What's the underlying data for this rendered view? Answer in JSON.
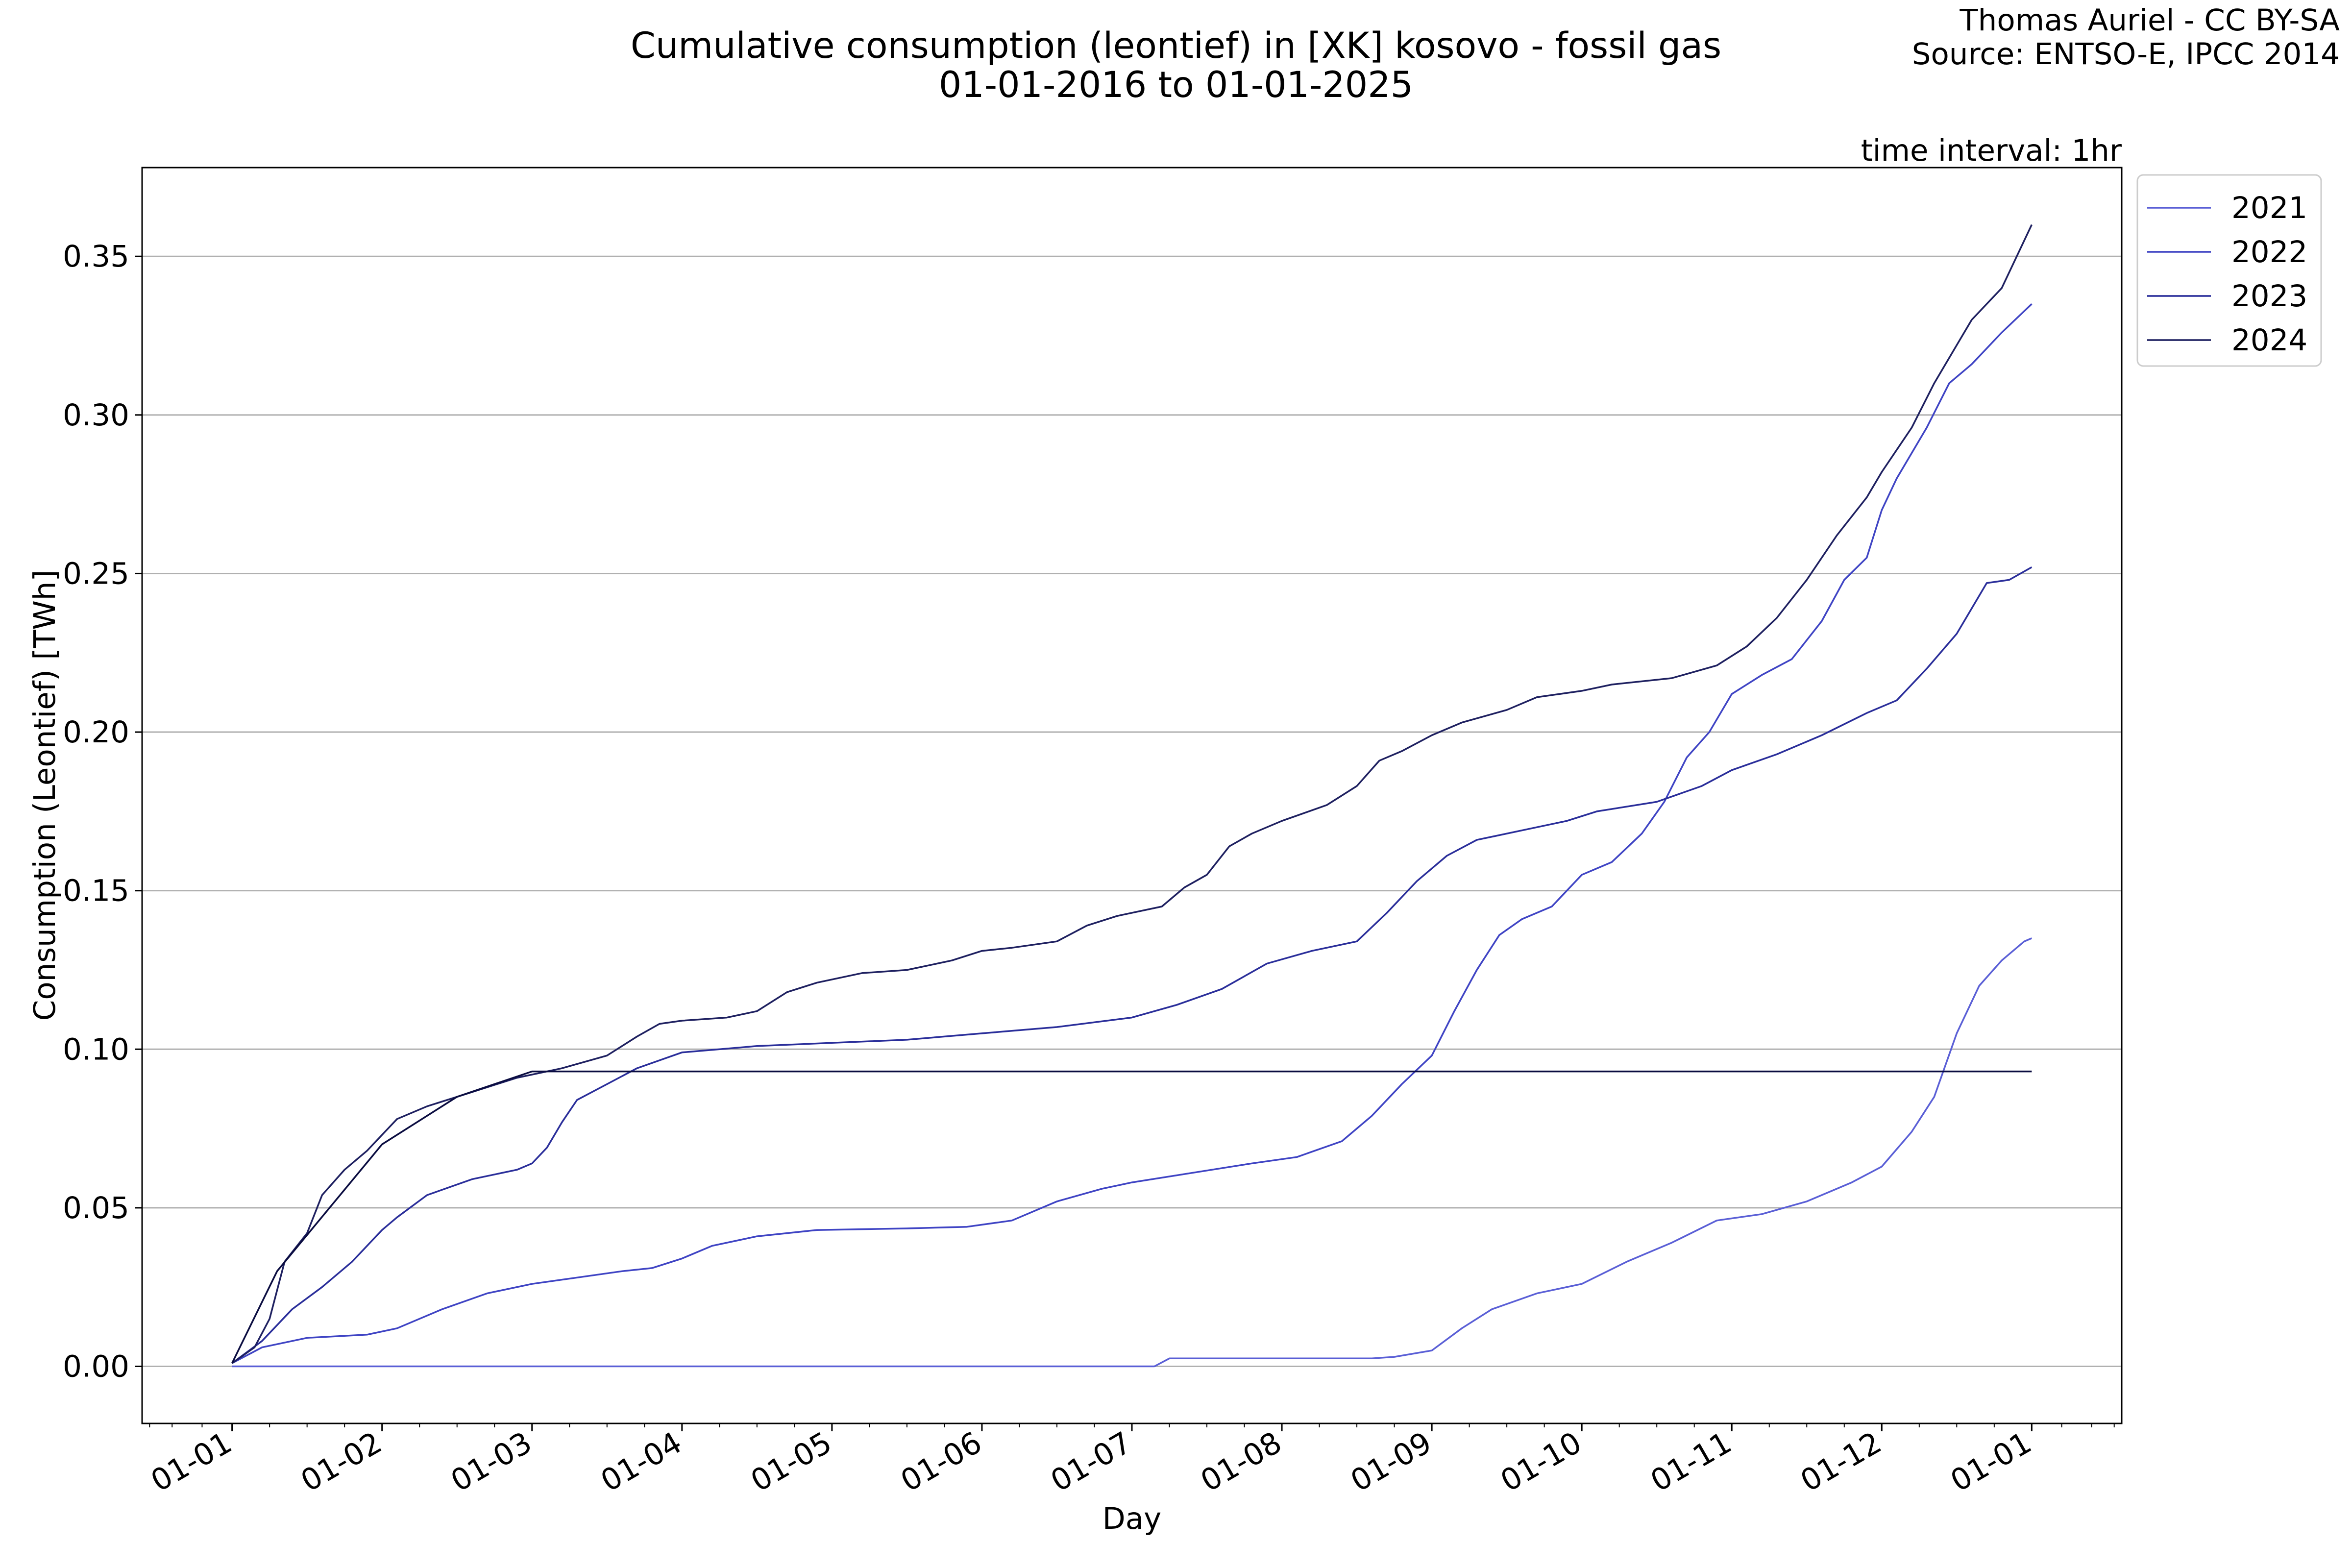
{
  "header": {
    "title_line1": "Cumulative consumption (leontief) in [XK] kosovo - fossil gas",
    "title_line2": "01-01-2016 to 01-01-2025",
    "credit_line1": "Thomas Auriel - CC BY-SA",
    "credit_line2": "Source: ENTSO-E, IPCC 2014",
    "interval_note": "time interval: 1hr"
  },
  "chart_data": {
    "type": "line",
    "xlabel": "Day",
    "ylabel": "Consumption (Leontief) [TWh]",
    "x_unit": "month of year (01 = Jan 1, 13 = Jan 1 of next year)",
    "xlim": [
      0.4,
      13.6
    ],
    "ylim": [
      -0.018,
      0.378
    ],
    "y_ticks": [
      0.0,
      0.05,
      0.1,
      0.15,
      0.2,
      0.25,
      0.3,
      0.35
    ],
    "y_tick_labels": [
      "0.00",
      "0.05",
      "0.10",
      "0.15",
      "0.20",
      "0.25",
      "0.30",
      "0.35"
    ],
    "x_ticks": [
      1,
      2,
      3,
      4,
      5,
      6,
      7,
      8,
      9,
      10,
      11,
      12,
      13
    ],
    "x_tick_labels": [
      "01-01",
      "01-02",
      "01-03",
      "01-04",
      "01-05",
      "01-06",
      "01-07",
      "01-08",
      "01-09",
      "01-10",
      "01-11",
      "01-12",
      "01-01"
    ],
    "grid": "horizontal",
    "legend_position": "outside top-right",
    "series": [
      {
        "name": "2021",
        "color": "#5a5fd6",
        "points": [
          [
            1.0,
            0.0
          ],
          [
            6.9,
            0.0
          ],
          [
            7.15,
            0.0
          ],
          [
            7.25,
            0.0025
          ],
          [
            8.6,
            0.0025
          ],
          [
            8.75,
            0.003
          ],
          [
            9.0,
            0.005
          ],
          [
            9.2,
            0.012
          ],
          [
            9.4,
            0.018
          ],
          [
            9.7,
            0.023
          ],
          [
            10.0,
            0.026
          ],
          [
            10.3,
            0.033
          ],
          [
            10.6,
            0.039
          ],
          [
            10.9,
            0.046
          ],
          [
            11.2,
            0.048
          ],
          [
            11.5,
            0.052
          ],
          [
            11.8,
            0.058
          ],
          [
            12.0,
            0.063
          ],
          [
            12.2,
            0.074
          ],
          [
            12.35,
            0.085
          ],
          [
            12.5,
            0.105
          ],
          [
            12.65,
            0.12
          ],
          [
            12.8,
            0.128
          ],
          [
            12.95,
            0.134
          ],
          [
            13.0,
            0.135
          ]
        ]
      },
      {
        "name": "2022",
        "color": "#3f44c4",
        "points": [
          [
            1.0,
            0.001
          ],
          [
            1.2,
            0.006
          ],
          [
            1.5,
            0.009
          ],
          [
            1.9,
            0.01
          ],
          [
            2.1,
            0.012
          ],
          [
            2.4,
            0.018
          ],
          [
            2.7,
            0.023
          ],
          [
            3.0,
            0.026
          ],
          [
            3.3,
            0.028
          ],
          [
            3.6,
            0.03
          ],
          [
            3.8,
            0.031
          ],
          [
            4.0,
            0.034
          ],
          [
            4.2,
            0.038
          ],
          [
            4.5,
            0.041
          ],
          [
            4.9,
            0.043
          ],
          [
            5.5,
            0.0435
          ],
          [
            5.9,
            0.044
          ],
          [
            6.2,
            0.046
          ],
          [
            6.5,
            0.052
          ],
          [
            6.8,
            0.056
          ],
          [
            7.0,
            0.058
          ],
          [
            7.4,
            0.061
          ],
          [
            7.8,
            0.064
          ],
          [
            8.1,
            0.066
          ],
          [
            8.4,
            0.071
          ],
          [
            8.6,
            0.079
          ],
          [
            8.8,
            0.089
          ],
          [
            9.0,
            0.098
          ],
          [
            9.15,
            0.112
          ],
          [
            9.3,
            0.125
          ],
          [
            9.45,
            0.136
          ],
          [
            9.6,
            0.141
          ],
          [
            9.8,
            0.145
          ],
          [
            10.0,
            0.155
          ],
          [
            10.2,
            0.159
          ],
          [
            10.4,
            0.168
          ],
          [
            10.55,
            0.178
          ],
          [
            10.7,
            0.192
          ],
          [
            10.85,
            0.2
          ],
          [
            11.0,
            0.212
          ],
          [
            11.2,
            0.218
          ],
          [
            11.4,
            0.223
          ],
          [
            11.6,
            0.235
          ],
          [
            11.75,
            0.248
          ],
          [
            11.9,
            0.255
          ],
          [
            12.0,
            0.27
          ],
          [
            12.1,
            0.28
          ],
          [
            12.3,
            0.296
          ],
          [
            12.45,
            0.31
          ],
          [
            12.6,
            0.316
          ],
          [
            12.8,
            0.326
          ],
          [
            13.0,
            0.335
          ]
        ]
      },
      {
        "name": "2023",
        "color": "#2a2e9a",
        "points": [
          [
            1.0,
            0.001
          ],
          [
            1.2,
            0.008
          ],
          [
            1.4,
            0.018
          ],
          [
            1.6,
            0.025
          ],
          [
            1.8,
            0.033
          ],
          [
            2.0,
            0.043
          ],
          [
            2.1,
            0.047
          ],
          [
            2.3,
            0.054
          ],
          [
            2.6,
            0.059
          ],
          [
            2.9,
            0.062
          ],
          [
            3.0,
            0.064
          ],
          [
            3.1,
            0.069
          ],
          [
            3.2,
            0.077
          ],
          [
            3.3,
            0.084
          ],
          [
            3.5,
            0.089
          ],
          [
            3.7,
            0.094
          ],
          [
            4.0,
            0.099
          ],
          [
            4.5,
            0.101
          ],
          [
            5.0,
            0.102
          ],
          [
            5.5,
            0.103
          ],
          [
            6.0,
            0.105
          ],
          [
            6.5,
            0.107
          ],
          [
            7.0,
            0.11
          ],
          [
            7.3,
            0.114
          ],
          [
            7.6,
            0.119
          ],
          [
            7.9,
            0.127
          ],
          [
            8.2,
            0.131
          ],
          [
            8.5,
            0.134
          ],
          [
            8.7,
            0.143
          ],
          [
            8.9,
            0.153
          ],
          [
            9.1,
            0.161
          ],
          [
            9.3,
            0.166
          ],
          [
            9.6,
            0.169
          ],
          [
            9.9,
            0.172
          ],
          [
            10.1,
            0.175
          ],
          [
            10.5,
            0.178
          ],
          [
            10.8,
            0.183
          ],
          [
            11.0,
            0.188
          ],
          [
            11.3,
            0.193
          ],
          [
            11.6,
            0.199
          ],
          [
            11.9,
            0.206
          ],
          [
            12.1,
            0.21
          ],
          [
            12.3,
            0.22
          ],
          [
            12.5,
            0.231
          ],
          [
            12.7,
            0.247
          ],
          [
            12.85,
            0.248
          ],
          [
            13.0,
            0.252
          ]
        ]
      },
      {
        "name": "2024",
        "color": "#1e2060",
        "points": [
          [
            1.0,
            0.001
          ],
          [
            1.15,
            0.006
          ],
          [
            1.25,
            0.015
          ],
          [
            1.35,
            0.033
          ],
          [
            1.5,
            0.042
          ],
          [
            1.6,
            0.054
          ],
          [
            1.75,
            0.062
          ],
          [
            1.9,
            0.068
          ],
          [
            2.1,
            0.078
          ],
          [
            2.3,
            0.082
          ],
          [
            2.5,
            0.085
          ],
          [
            2.7,
            0.088
          ],
          [
            2.9,
            0.091
          ],
          [
            3.2,
            0.094
          ],
          [
            3.5,
            0.098
          ],
          [
            3.7,
            0.104
          ],
          [
            3.85,
            0.108
          ],
          [
            4.0,
            0.109
          ],
          [
            4.3,
            0.11
          ],
          [
            4.5,
            0.112
          ],
          [
            4.7,
            0.118
          ],
          [
            4.9,
            0.121
          ],
          [
            5.2,
            0.124
          ],
          [
            5.5,
            0.125
          ],
          [
            5.8,
            0.128
          ],
          [
            6.0,
            0.131
          ],
          [
            6.2,
            0.132
          ],
          [
            6.5,
            0.134
          ],
          [
            6.7,
            0.139
          ],
          [
            6.9,
            0.142
          ],
          [
            7.2,
            0.145
          ],
          [
            7.35,
            0.151
          ],
          [
            7.5,
            0.155
          ],
          [
            7.65,
            0.164
          ],
          [
            7.8,
            0.168
          ],
          [
            8.0,
            0.172
          ],
          [
            8.3,
            0.177
          ],
          [
            8.5,
            0.183
          ],
          [
            8.65,
            0.191
          ],
          [
            8.8,
            0.194
          ],
          [
            9.0,
            0.199
          ],
          [
            9.2,
            0.203
          ],
          [
            9.5,
            0.207
          ],
          [
            9.7,
            0.211
          ],
          [
            10.0,
            0.213
          ],
          [
            10.2,
            0.215
          ],
          [
            10.6,
            0.217
          ],
          [
            10.9,
            0.221
          ],
          [
            11.1,
            0.227
          ],
          [
            11.3,
            0.236
          ],
          [
            11.5,
            0.248
          ],
          [
            11.7,
            0.262
          ],
          [
            11.9,
            0.274
          ],
          [
            12.0,
            0.282
          ],
          [
            12.2,
            0.296
          ],
          [
            12.35,
            0.31
          ],
          [
            12.5,
            0.322
          ],
          [
            12.6,
            0.33
          ],
          [
            12.8,
            0.34
          ],
          [
            13.0,
            0.36
          ]
        ]
      },
      {
        "name": "",
        "color": "#0a0c40",
        "points": [
          [
            1.0,
            0.001
          ],
          [
            1.3,
            0.03
          ],
          [
            2.0,
            0.07
          ],
          [
            2.5,
            0.085
          ],
          [
            3.0,
            0.093
          ],
          [
            13.0,
            0.093
          ]
        ]
      }
    ]
  }
}
